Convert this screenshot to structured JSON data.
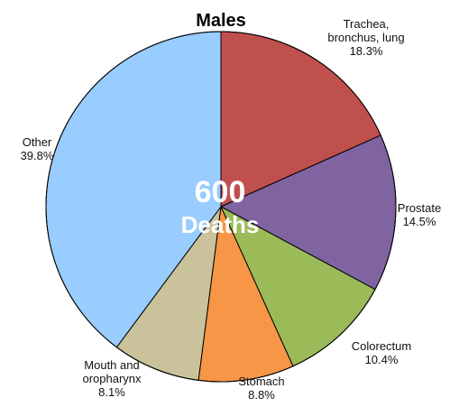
{
  "chart_data": {
    "type": "pie",
    "title": "Males",
    "center_value": "600",
    "center_label": "Deaths",
    "start_angle_deg": 0,
    "direction": "clockwise",
    "slices": [
      {
        "label": [
          "Trachea,",
          "bronchus, lung"
        ],
        "value": 18.3,
        "value_label": "18.3%",
        "color": "#c0504d"
      },
      {
        "label": [
          "Prostate"
        ],
        "value": 14.5,
        "value_label": "14.5%",
        "color": "#8064a2"
      },
      {
        "label": [
          "Colorectum"
        ],
        "value": 10.4,
        "value_label": "10.4%",
        "color": "#9bbb59"
      },
      {
        "label": [
          "Stomach"
        ],
        "value": 8.8,
        "value_label": "8.8%",
        "color": "#f79646"
      },
      {
        "label": [
          "Mouth and",
          "oropharynx"
        ],
        "value": 8.1,
        "value_label": "8.1%",
        "color": "#c9c29a"
      },
      {
        "label": [
          "Other"
        ],
        "value": 39.8,
        "value_label": "39.8%",
        "color": "#99ccff"
      }
    ]
  }
}
